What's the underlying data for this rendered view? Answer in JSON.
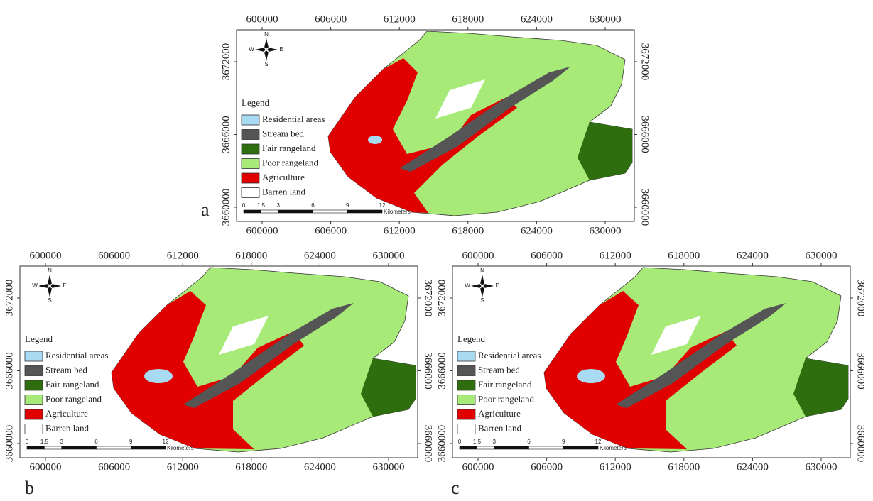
{
  "panels": [
    {
      "label": "a"
    },
    {
      "label": "b"
    },
    {
      "label": "c"
    }
  ],
  "xticks": [
    600000,
    606000,
    612000,
    618000,
    624000,
    630000
  ],
  "yticks": [
    3660000,
    3666000,
    3672000
  ],
  "compass": {
    "north": "N",
    "south": "S",
    "east": "E",
    "west": "W"
  },
  "legend": {
    "title": "Legend",
    "items": [
      {
        "name": "Residential areas",
        "color": "#a8daf2"
      },
      {
        "name": "Stream bed",
        "color": "#555555"
      },
      {
        "name": "Fair rangeland",
        "color": "#2e6e0f"
      },
      {
        "name": "Poor rangeland",
        "color": "#a8ea78"
      },
      {
        "name": "Agriculture",
        "color": "#e00000"
      },
      {
        "name": "Barren land",
        "color": "#ffffff"
      }
    ]
  },
  "scale_bar": {
    "ticks": [
      0,
      1.5,
      3,
      6,
      9,
      12
    ],
    "unit": "Kilometers"
  }
}
